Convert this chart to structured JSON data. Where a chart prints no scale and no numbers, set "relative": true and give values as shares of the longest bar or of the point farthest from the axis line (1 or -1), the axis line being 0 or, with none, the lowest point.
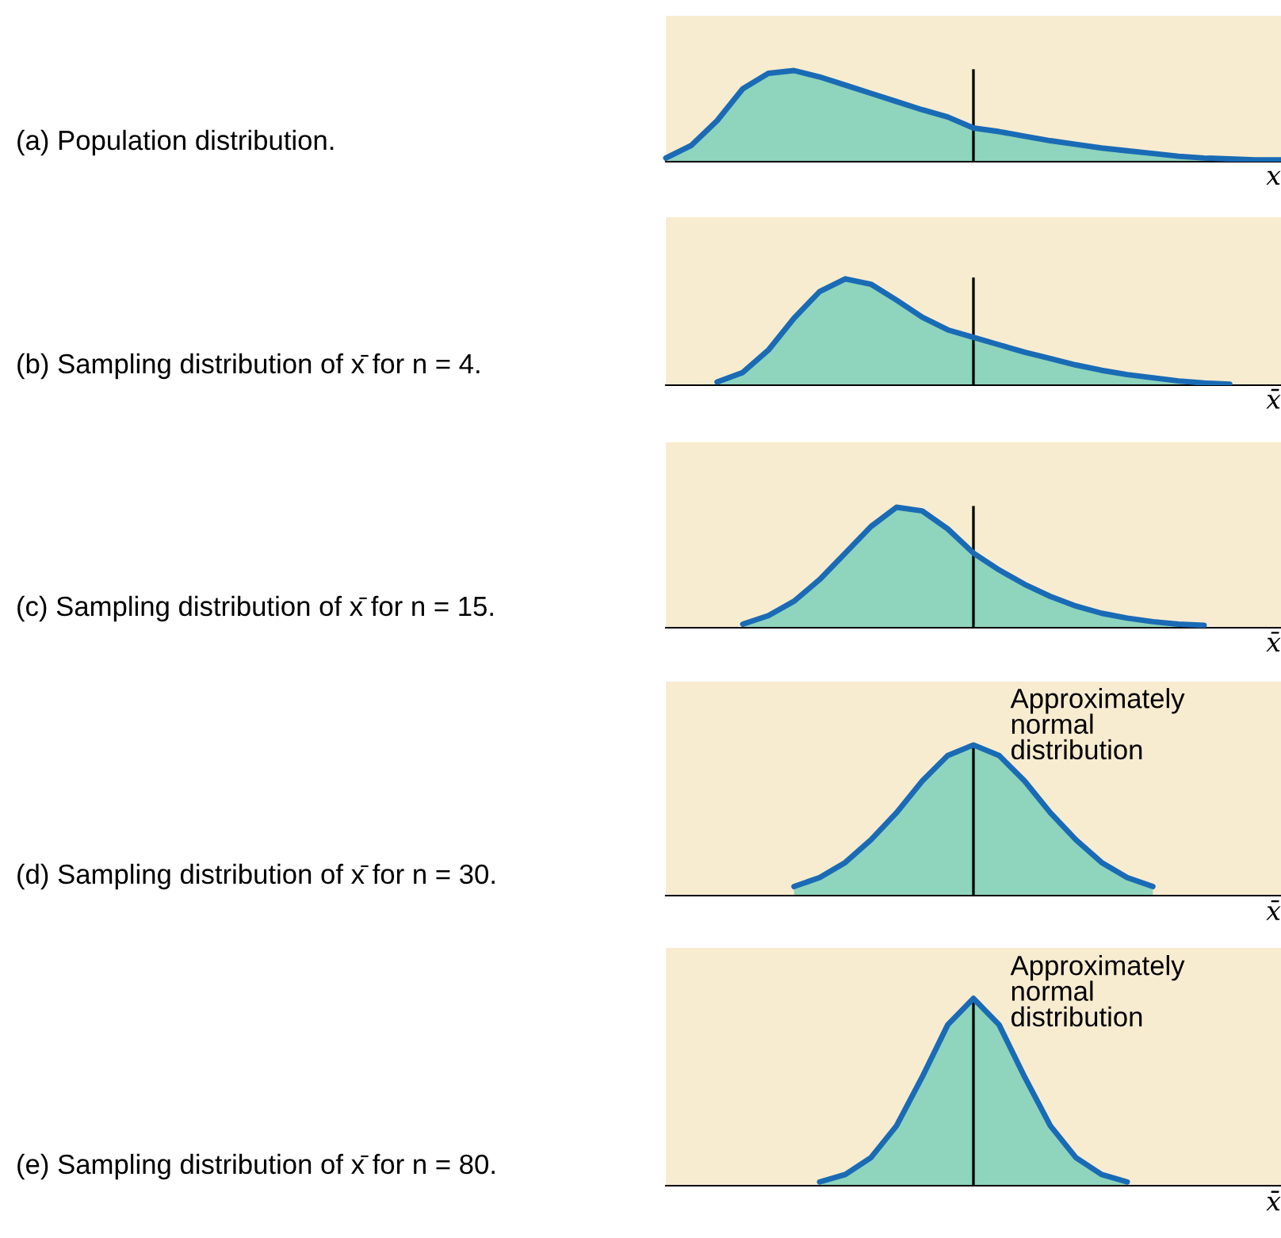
{
  "chart_data": [
    {
      "type": "area",
      "ylabel": "(a) Population distribution.",
      "xlabel": "x",
      "relative": true,
      "categories": [
        null,
        null,
        null,
        null,
        null,
        null,
        null,
        null,
        null,
        null,
        null,
        null,
        null,
        null,
        null,
        null,
        null,
        null,
        null,
        null,
        null,
        null,
        null,
        null,
        null
      ],
      "series": [
        {
          "color": "#1a6bb5",
          "values": [
            0.04,
            0.18,
            0.45,
            0.8,
            0.97,
            1.0,
            0.93,
            0.84,
            0.75,
            0.66,
            0.57,
            0.49,
            0.37,
            0.33,
            0.28,
            0.23,
            0.19,
            0.15,
            0.12,
            0.09,
            0.06,
            0.04,
            0.03,
            0.02,
            0.02
          ]
        }
      ],
      "legend": false,
      "grid": false
    },
    {
      "type": "area",
      "ylabel": "(b) Sampling distribution of x̄ for n = 4.",
      "xlabel": "x̄",
      "relative": true,
      "categories": [
        null,
        null,
        null,
        null,
        null,
        null,
        null,
        null,
        null,
        null,
        null,
        null,
        null,
        null,
        null,
        null,
        null,
        null,
        null,
        null,
        null,
        null,
        null,
        null,
        null
      ],
      "series": [
        {
          "color": "#1a6bb5",
          "values": [
            null,
            null,
            0.03,
            0.12,
            0.33,
            0.63,
            0.88,
            1.0,
            0.95,
            0.8,
            0.64,
            0.52,
            0.45,
            0.38,
            0.31,
            0.25,
            0.19,
            0.14,
            0.1,
            0.07,
            0.04,
            0.02,
            0.01,
            null,
            null
          ]
        }
      ],
      "legend": false,
      "grid": false
    },
    {
      "type": "area",
      "ylabel": "(c) Sampling distribution of x̄ for n = 15.",
      "xlabel": "x̄",
      "relative": true,
      "categories": [
        null,
        null,
        null,
        null,
        null,
        null,
        null,
        null,
        null,
        null,
        null,
        null,
        null,
        null,
        null,
        null,
        null,
        null,
        null,
        null,
        null,
        null,
        null,
        null,
        null
      ],
      "series": [
        {
          "color": "#1a6bb5",
          "values": [
            null,
            null,
            null,
            0.03,
            0.1,
            0.22,
            0.4,
            0.62,
            0.84,
            1.0,
            0.97,
            0.82,
            0.62,
            0.48,
            0.36,
            0.26,
            0.18,
            0.12,
            0.08,
            0.05,
            0.03,
            0.02,
            null,
            null,
            null
          ]
        }
      ],
      "legend": false,
      "grid": false
    },
    {
      "type": "area",
      "ylabel": "(d) Sampling distribution of x̄ for n = 30.",
      "xlabel": "x̄",
      "relative": true,
      "categories": [
        null,
        null,
        null,
        null,
        null,
        null,
        null,
        null,
        null,
        null,
        null,
        null,
        null,
        null,
        null,
        null,
        null,
        null,
        null,
        null,
        null,
        null,
        null,
        null,
        null
      ],
      "series": [
        {
          "color": "#1a6bb5",
          "values": [
            null,
            null,
            null,
            null,
            null,
            0.06,
            0.12,
            0.22,
            0.37,
            0.55,
            0.76,
            0.93,
            1.0,
            0.93,
            0.76,
            0.55,
            0.37,
            0.22,
            0.12,
            0.06,
            null,
            null,
            null,
            null,
            null
          ]
        }
      ],
      "annotations": [
        "Approximately\nnormal\ndistribution"
      ],
      "legend": false,
      "grid": false
    },
    {
      "type": "area",
      "ylabel": "(e) Sampling distribution of x̄ for n = 80.",
      "xlabel": "x̄",
      "relative": true,
      "categories": [
        null,
        null,
        null,
        null,
        null,
        null,
        null,
        null,
        null,
        null,
        null,
        null,
        null,
        null,
        null,
        null,
        null,
        null,
        null,
        null,
        null,
        null,
        null,
        null,
        null
      ],
      "series": [
        {
          "color": "#1a6bb5",
          "values": [
            null,
            null,
            null,
            null,
            null,
            null,
            0.02,
            0.06,
            0.15,
            0.32,
            0.58,
            0.86,
            1.0,
            0.86,
            0.58,
            0.32,
            0.15,
            0.06,
            0.02,
            null,
            null,
            null,
            null,
            null,
            null
          ]
        }
      ],
      "annotations": [
        "Approximately\nnormal\ndistribution"
      ],
      "legend": false,
      "grid": false
    }
  ]
}
